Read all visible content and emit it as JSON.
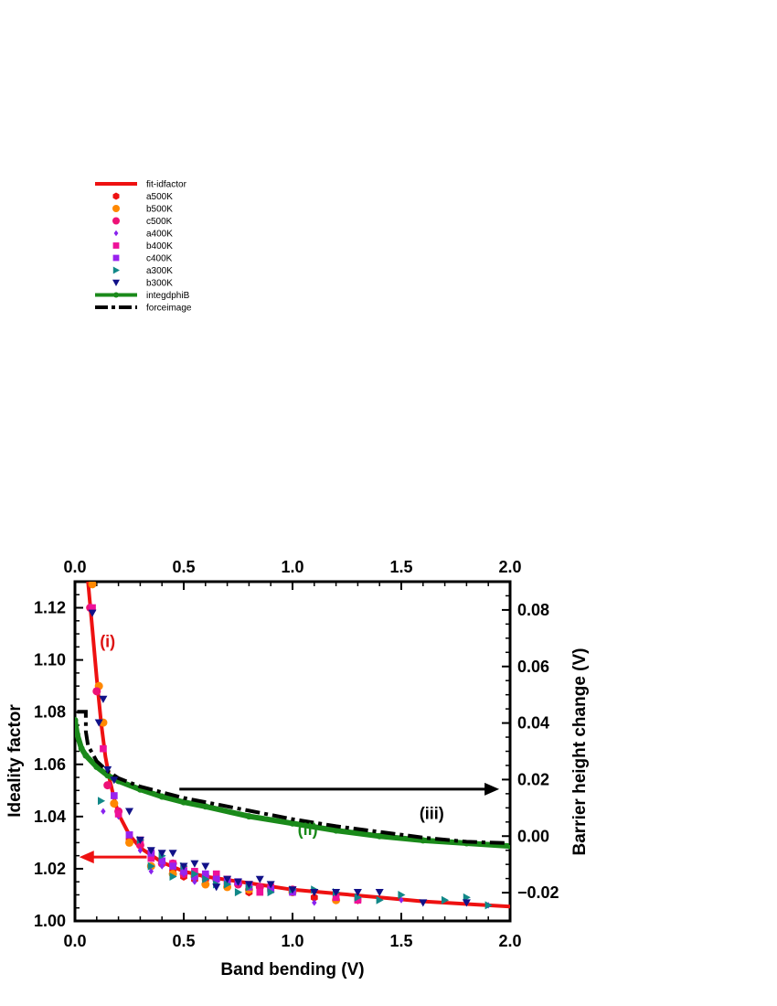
{
  "chart_data": {
    "type": "scatter",
    "xlabel": "Band bending  (V)",
    "ylabel": "Ideality factor",
    "y2label": "Barrier height change  (V)",
    "xlim": [
      0,
      2.0
    ],
    "ylim": [
      1.0,
      1.13
    ],
    "y2lim": [
      -0.03,
      0.09
    ],
    "x_ticks": [
      "0.0",
      "0.5",
      "1.0",
      "1.5",
      "2.0"
    ],
    "y_ticks": [
      "1.00",
      "1.02",
      "1.04",
      "1.06",
      "1.08",
      "1.10",
      "1.12"
    ],
    "y2_ticks": [
      "−0.02",
      "0.00",
      "0.02",
      "0.04",
      "0.06",
      "0.08"
    ],
    "x_tick_values": [
      0,
      0.5,
      1.0,
      1.5,
      2.0
    ],
    "y_tick_values": [
      1.0,
      1.02,
      1.04,
      1.06,
      1.08,
      1.1,
      1.12
    ],
    "y2_tick_values": [
      -0.02,
      0.0,
      0.02,
      0.04,
      0.06,
      0.08
    ],
    "grid": false,
    "legend_position": "upper-left, above plot",
    "annotations": [
      {
        "text": "(i)",
        "x": 0.15,
        "y": 1.105,
        "color": "#dd1111"
      },
      {
        "text": "(ii)",
        "x": 1.07,
        "y": 1.033,
        "color": "#1a8a1a"
      },
      {
        "text": "(iii)",
        "x": 1.64,
        "y": 1.039,
        "color": "#000000"
      }
    ],
    "arrows": [
      {
        "from": [
          0.33,
          1.0245
        ],
        "to": [
          0.02,
          1.0245
        ],
        "color": "#ee1111"
      },
      {
        "from": [
          0.48,
          1.0505
        ],
        "to": [
          1.95,
          1.0505
        ],
        "color": "#000000"
      }
    ],
    "series": [
      {
        "name": "fit-idfactor",
        "style": "line",
        "axis": "left",
        "color": "#ee1111",
        "x": [
          0.06,
          0.08,
          0.1,
          0.12,
          0.14,
          0.16,
          0.18,
          0.2,
          0.25,
          0.3,
          0.4,
          0.5,
          0.6,
          0.8,
          1.0,
          1.2,
          1.4,
          1.6,
          1.8,
          2.0
        ],
        "y": [
          1.13,
          1.112,
          1.093,
          1.076,
          1.063,
          1.054,
          1.047,
          1.041,
          1.033,
          1.028,
          1.0225,
          1.019,
          1.017,
          1.0145,
          1.012,
          1.0105,
          1.009,
          1.0075,
          1.0065,
          1.0055
        ]
      },
      {
        "name": "a500K",
        "style": "marker",
        "marker": "hexagon",
        "color": "#ee1111",
        "axis": "left",
        "x": [
          0.25,
          0.35,
          0.45,
          0.5,
          0.55,
          0.6,
          0.7,
          0.8,
          0.9,
          1.0,
          1.1,
          1.2,
          1.3
        ],
        "y": [
          1.031,
          1.026,
          1.019,
          1.017,
          1.016,
          1.016,
          1.014,
          1.011,
          1.012,
          1.011,
          1.009,
          1.008,
          1.008
        ]
      },
      {
        "name": "b500K",
        "style": "marker",
        "marker": "circle",
        "color": "#ff8800",
        "axis": "left",
        "x": [
          0.08,
          0.11,
          0.13,
          0.18,
          0.25,
          0.35,
          0.45,
          0.55,
          0.6,
          0.7,
          0.8,
          1.0,
          1.2
        ],
        "y": [
          1.129,
          1.09,
          1.076,
          1.045,
          1.03,
          1.021,
          1.018,
          1.017,
          1.014,
          1.013,
          1.012,
          1.011,
          1.008
        ]
      },
      {
        "name": "c500K",
        "style": "marker",
        "marker": "circle",
        "color": "#ee1177",
        "axis": "left",
        "x": [
          0.07,
          0.1,
          0.15,
          0.2,
          0.3,
          0.4,
          0.45,
          0.5,
          0.6,
          0.65,
          0.75,
          0.85,
          1.0
        ],
        "y": [
          1.12,
          1.088,
          1.052,
          1.042,
          1.029,
          1.022,
          1.022,
          1.018,
          1.017,
          1.016,
          1.014,
          1.013,
          1.012
        ]
      },
      {
        "name": "a400K",
        "style": "marker",
        "marker": "diamond",
        "color": "#8822ee",
        "axis": "left",
        "x": [
          0.13,
          0.2,
          0.3,
          0.35,
          0.4,
          0.5,
          0.55,
          0.6,
          0.7,
          0.8,
          0.9,
          1.1,
          1.3,
          1.5,
          1.8,
          1.9
        ],
        "y": [
          1.042,
          1.04,
          1.027,
          1.019,
          1.021,
          1.018,
          1.015,
          1.016,
          1.015,
          1.014,
          1.013,
          1.007,
          1.009,
          1.008,
          1.007,
          1.006
        ]
      },
      {
        "name": "b400K",
        "style": "marker",
        "marker": "square",
        "color": "#ee1199",
        "axis": "left",
        "x": [
          0.08,
          0.13,
          0.2,
          0.25,
          0.3,
          0.35,
          0.45,
          0.5,
          0.55,
          0.6,
          0.65,
          0.7,
          0.8,
          0.85,
          0.9,
          1.0,
          1.2,
          1.3
        ],
        "y": [
          1.12,
          1.066,
          1.041,
          1.033,
          1.031,
          1.024,
          1.022,
          1.02,
          1.019,
          1.017,
          1.018,
          1.016,
          1.014,
          1.011,
          1.013,
          1.012,
          1.009,
          1.008
        ]
      },
      {
        "name": "c400K",
        "style": "marker",
        "marker": "square",
        "color": "#9922ee",
        "axis": "left",
        "x": [
          0.18,
          0.25,
          0.35,
          0.4,
          0.45,
          0.5,
          0.55,
          0.6,
          0.65,
          0.7,
          0.75,
          0.8,
          0.9,
          1.0
        ],
        "y": [
          1.048,
          1.033,
          1.026,
          1.023,
          1.021,
          1.019,
          1.017,
          1.018,
          1.016,
          1.015,
          1.015,
          1.013,
          1.012,
          1.011
        ]
      },
      {
        "name": "a300K",
        "style": "marker",
        "marker": "triangle-right",
        "color": "#118888",
        "axis": "left",
        "x": [
          0.12,
          0.3,
          0.35,
          0.4,
          0.45,
          0.5,
          0.55,
          0.6,
          0.65,
          0.7,
          0.75,
          0.8,
          0.9,
          1.0,
          1.1,
          1.2,
          1.3,
          1.4,
          1.5,
          1.7,
          1.8,
          1.9
        ],
        "y": [
          1.046,
          1.031,
          1.021,
          1.025,
          1.017,
          1.021,
          1.018,
          1.016,
          1.014,
          1.014,
          1.011,
          1.013,
          1.011,
          1.012,
          1.012,
          1.011,
          1.009,
          1.008,
          1.01,
          1.008,
          1.009,
          1.006
        ]
      },
      {
        "name": "b300K",
        "style": "marker",
        "marker": "triangle-down",
        "color": "#111188",
        "axis": "left",
        "x": [
          0.08,
          0.11,
          0.13,
          0.15,
          0.18,
          0.25,
          0.3,
          0.35,
          0.4,
          0.45,
          0.5,
          0.55,
          0.6,
          0.65,
          0.7,
          0.75,
          0.8,
          0.85,
          0.9,
          1.0,
          1.1,
          1.2,
          1.3,
          1.4,
          1.6,
          1.8
        ],
        "y": [
          1.118,
          1.076,
          1.085,
          1.058,
          1.054,
          1.042,
          1.031,
          1.027,
          1.026,
          1.026,
          1.021,
          1.022,
          1.021,
          1.013,
          1.016,
          1.015,
          1.014,
          1.016,
          1.014,
          1.012,
          1.011,
          1.011,
          1.011,
          1.011,
          1.007,
          1.007
        ]
      },
      {
        "name": "integdphiB",
        "style": "line+marker",
        "marker": "circle",
        "color": "#1a8a1a",
        "axis": "right",
        "x": [
          0.0,
          0.01,
          0.03,
          0.05,
          0.1,
          0.15,
          0.2,
          0.3,
          0.4,
          0.5,
          0.6,
          0.8,
          1.0,
          1.2,
          1.4,
          1.6,
          1.8,
          2.0
        ],
        "y": [
          0.041,
          0.036,
          0.031,
          0.0285,
          0.0245,
          0.0215,
          0.0195,
          0.0165,
          0.014,
          0.012,
          0.0105,
          0.007,
          0.0045,
          0.002,
          0.0,
          -0.0015,
          -0.0025,
          -0.0035
        ]
      },
      {
        "name": "forceimage",
        "style": "dash-dot",
        "color": "#000000",
        "axis": "right",
        "x": [
          0.01,
          0.05,
          0.05,
          0.06,
          0.1,
          0.15,
          0.2,
          0.3,
          0.4,
          0.5,
          0.6,
          0.8,
          1.0,
          1.2,
          1.4,
          1.6,
          1.8,
          2.0
        ],
        "y": [
          0.044,
          0.044,
          0.037,
          0.032,
          0.0265,
          0.023,
          0.0205,
          0.0175,
          0.0155,
          0.0135,
          0.012,
          0.009,
          0.006,
          0.0035,
          0.0015,
          -0.0005,
          -0.002,
          -0.0025
        ]
      }
    ]
  }
}
